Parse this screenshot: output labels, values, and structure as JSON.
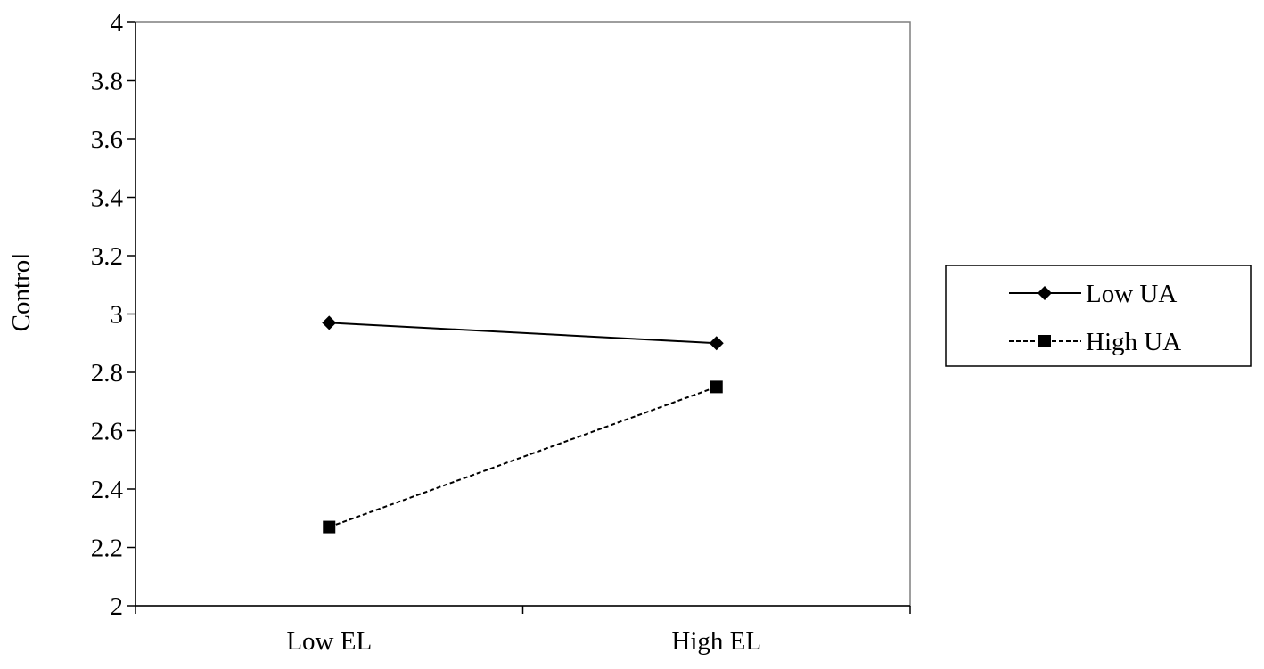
{
  "chart_data": {
    "type": "line",
    "title": "",
    "xlabel": "",
    "ylabel": "Control",
    "categories": [
      "Low EL",
      "High EL"
    ],
    "ylim": [
      2,
      4
    ],
    "yticks": [
      "2",
      "2.2",
      "2.4",
      "2.6",
      "2.8",
      "3",
      "3.2",
      "3.4",
      "3.6",
      "3.8",
      "4"
    ],
    "grid": false,
    "legend_position": "right",
    "series": [
      {
        "name": "Low UA",
        "values": [
          2.97,
          2.9
        ],
        "marker": "diamond",
        "line_style": "solid",
        "color": "#000000"
      },
      {
        "name": "High UA",
        "values": [
          2.27,
          2.75
        ],
        "marker": "square",
        "line_style": "dashed",
        "color": "#000000"
      }
    ]
  }
}
